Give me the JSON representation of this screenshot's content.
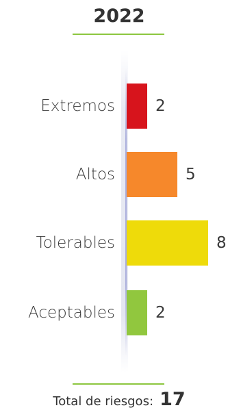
{
  "chart_data": {
    "type": "bar",
    "orientation": "horizontal",
    "title": "2022",
    "categories": [
      "Extremos",
      "Altos",
      "Tolerables",
      "Aceptables"
    ],
    "values": [
      2,
      5,
      8,
      2
    ],
    "colors": [
      "#d7141c",
      "#f6882b",
      "#eedb0a",
      "#91c73e"
    ],
    "xlim": [
      0,
      8
    ],
    "grid": false
  },
  "summary": {
    "total_label": "Total de riesgos:",
    "total_value": "17"
  },
  "accent_color": "#8cc63f"
}
